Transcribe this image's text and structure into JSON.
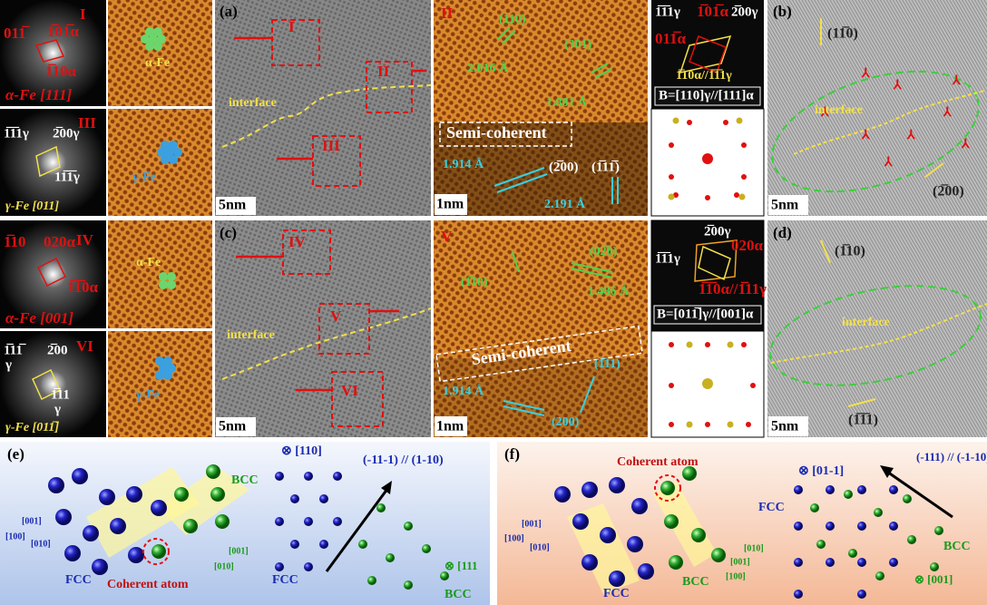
{
  "fft": [
    {
      "label": "I",
      "spots": [
        "011̅",
        "1̅01̅α",
        "1̅10α"
      ],
      "caption": "α-Fe [111]",
      "atom": "α-Fe"
    },
    {
      "label": "III",
      "spots": [
        "1̅1̅1γ",
        "2̅00γ",
        "11̅1̅γ"
      ],
      "caption": "γ-Fe [011]",
      "atom": "γ-Fe"
    },
    {
      "label": "IV",
      "spots": [
        "1̅10",
        "020α",
        "1̅1̅0α"
      ],
      "caption": "α-Fe [001]",
      "atom": "α-Fe"
    },
    {
      "label": "VI",
      "spots": [
        "1̅11̅",
        "2̅00",
        "γ",
        "1̅11",
        "γ"
      ],
      "caption": "γ-Fe [011̅]",
      "atom": "γ-Fe"
    }
  ],
  "panel_a": {
    "label": "(a)",
    "regions": [
      "I",
      "II",
      "III"
    ],
    "interface": "interface",
    "scale": "5nm"
  },
  "panel_c": {
    "label": "(c)",
    "regions": [
      "IV",
      "V",
      "VI"
    ],
    "interface": "interface",
    "scale": "5nm"
  },
  "panel_II": {
    "label": "II",
    "texts": [
      "(110)",
      "(301)",
      "2.016 Å",
      "1.881 Å",
      "Semi-coherent",
      "1.914 Å",
      "(2̅00)",
      "(1̅11̅)",
      "2.191 Å"
    ],
    "scale": "1nm"
  },
  "panel_V": {
    "label": "V",
    "texts": [
      "(1̅10)",
      "(02̅0)",
      "1.486 Å",
      "Semi-coherent",
      "(1̅11)",
      "1.914 Å",
      "(200)"
    ],
    "scale": "1nm"
  },
  "diffraction_top": {
    "spots": [
      "1̅1̅1γ",
      "1̅01̅α",
      "2̅00γ",
      "011̅α",
      "1̅10α//1̅1̅1γ"
    ],
    "zone": "B=[110]γ//[111]α"
  },
  "diffraction_bottom": {
    "spots": [
      "2̅00γ",
      "1̅1̅1γ",
      "020α",
      "1̅1̅0α//1̅11γ"
    ],
    "zone": "B=[011̅]γ//[001]α"
  },
  "panel_b": {
    "label": "(b)",
    "planes": [
      "(11̅0)",
      "(2̅00)"
    ],
    "interface": "interface",
    "scale": "5nm"
  },
  "panel_d": {
    "label": "(d)",
    "planes": [
      "(1̅10)",
      "(1̅1̅1)"
    ],
    "interface": "interface",
    "scale": "5nm"
  },
  "panel_e": {
    "label": "(e)",
    "coherent": "Coherent atom",
    "texts": [
      "BCC",
      "FCC",
      "[001]",
      "[100]",
      "[010]",
      "[001]",
      "[010]",
      "⊗ [110]",
      "(-11-1) // (1-10)",
      "FCC",
      "BCC",
      "⊗ [111"
    ]
  },
  "panel_f": {
    "label": "(f)",
    "coherent": "Coherent atom",
    "texts": [
      "⊗ [01-1]",
      "(-111) // (-1-10)",
      "FCC",
      "BCC",
      "FCC",
      "BCC",
      "[001]",
      "[100]",
      "[010]",
      "[001]",
      "[010]",
      "[100]",
      "⊗ [001]"
    ]
  }
}
